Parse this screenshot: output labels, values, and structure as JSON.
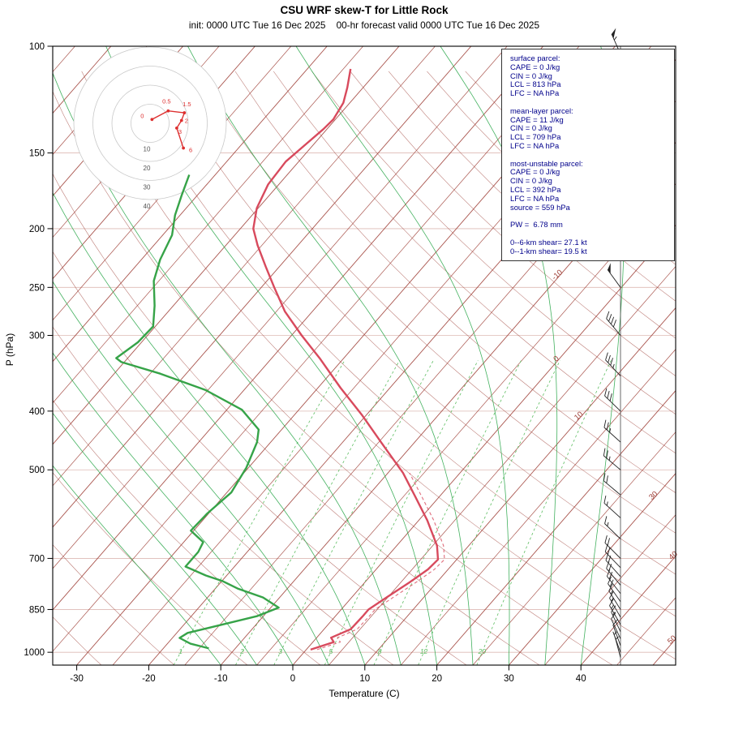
{
  "title": "CSU WRF skew-T for Little Rock",
  "subtitle": "init: 0000 UTC Tue 16 Dec 2025    00-hr forecast valid 0000 UTC Tue 16 Dec 2025",
  "axes": {
    "x_label": "Temperature (C)",
    "y_label": "P (hPa)",
    "x_ticks": [
      -30,
      -20,
      -10,
      0,
      10,
      20,
      30,
      40
    ],
    "y_ticks": [
      100,
      150,
      200,
      250,
      300,
      400,
      500,
      700,
      850,
      1000
    ]
  },
  "isotherm_labels": [
    {
      "t": -10,
      "label": "-10"
    },
    {
      "t": 0,
      "label": "0"
    },
    {
      "t": 10,
      "label": "10"
    },
    {
      "t": 30,
      "label": "30"
    },
    {
      "t": 40,
      "label": "40"
    },
    {
      "t": 50,
      "label": "50"
    }
  ],
  "mixing_ratio_labels": [
    1,
    2,
    3,
    5,
    8,
    12,
    20
  ],
  "info_box": {
    "sections": [
      {
        "title": "surface parcel:",
        "rows": [
          "CAPE = 0 J/kg",
          "CIN = 0 J/kg",
          "LCL = 813 hPa",
          "LFC = NA hPa"
        ]
      },
      {
        "title": "mean-layer parcel:",
        "rows": [
          "CAPE = 11 J/kg",
          "CIN = 0 J/kg",
          "LCL = 709 hPa",
          "LFC = NA hPa"
        ]
      },
      {
        "title": "most-unstable parcel:",
        "rows": [
          "CAPE = 0 J/kg",
          "CIN = 0 J/kg",
          "LCL = 392 hPa",
          "LFC = NA hPa",
          "source = 559 hPa"
        ]
      },
      {
        "title": "",
        "rows": [
          "PW =  6.78 mm"
        ]
      },
      {
        "title": "",
        "rows": [
          "0--6-km shear= 27.1 kt",
          "0--1-km shear= 19.5 kt"
        ]
      }
    ]
  },
  "colors": {
    "isotherm": "#a0423a",
    "pressure_grid": "#debab4",
    "moist_adiabat": "#2fa84e",
    "mixing_ratio": "#5fbe63",
    "temperature": "#d84a5d",
    "dewpoint": "#36a348",
    "hodograph_trace": "#dd2f2f",
    "hodograph_ring": "#c9c9c9",
    "info_text": "#00008b",
    "barb": "#222222",
    "frame": "#000000"
  },
  "chart_data": {
    "type": "skewt-log-p",
    "pressure_axis_hpa": [
      100,
      1050
    ],
    "temperature_axis_c": [
      -35,
      52
    ],
    "temperature_profile": [
      [
        990,
        0.6
      ],
      [
        962,
        2.9
      ],
      [
        946,
        2.0
      ],
      [
        916,
        3.7
      ],
      [
        873,
        3.8
      ],
      [
        850,
        3.8
      ],
      [
        810,
        4.9
      ],
      [
        767,
        6.2
      ],
      [
        730,
        7.2
      ],
      [
        703,
        7.4
      ],
      [
        667,
        5.6
      ],
      [
        606,
        1.2
      ],
      [
        553,
        -3.4
      ],
      [
        506,
        -7.9
      ],
      [
        450,
        -14.7
      ],
      [
        406,
        -20.6
      ],
      [
        366,
        -26.9
      ],
      [
        328,
        -33.2
      ],
      [
        300,
        -38.6
      ],
      [
        274,
        -43.8
      ],
      [
        250,
        -48.2
      ],
      [
        231,
        -51.9
      ],
      [
        213,
        -55.6
      ],
      [
        200,
        -58.2
      ],
      [
        185,
        -60.2
      ],
      [
        169,
        -61.5
      ],
      [
        155,
        -61.8
      ],
      [
        145,
        -61.1
      ],
      [
        137,
        -60.5
      ],
      [
        132,
        -60.3
      ],
      [
        124,
        -60.9
      ],
      [
        117,
        -62.2
      ],
      [
        109,
        -64.0
      ]
    ],
    "dewpoint_profile": [
      [
        985,
        -13.7
      ],
      [
        968,
        -16.8
      ],
      [
        947,
        -19.0
      ],
      [
        929,
        -18.5
      ],
      [
        901,
        -14.8
      ],
      [
        872,
        -10.9
      ],
      [
        844,
        -8.9
      ],
      [
        812,
        -12.3
      ],
      [
        785,
        -16.9
      ],
      [
        763,
        -19.9
      ],
      [
        747,
        -22.9
      ],
      [
        722,
        -26.8
      ],
      [
        683,
        -26.8
      ],
      [
        658,
        -27.3
      ],
      [
        630,
        -30.4
      ],
      [
        590,
        -30.2
      ],
      [
        545,
        -29.4
      ],
      [
        496,
        -30.3
      ],
      [
        450,
        -31.9
      ],
      [
        429,
        -33.2
      ],
      [
        398,
        -37.9
      ],
      [
        369,
        -45.4
      ],
      [
        347,
        -53.6
      ],
      [
        332,
        -60.4
      ],
      [
        327,
        -61.6
      ],
      [
        308,
        -60.5
      ],
      [
        290,
        -60.3
      ],
      [
        268,
        -62.6
      ],
      [
        244,
        -65.7
      ],
      [
        225,
        -67.4
      ],
      [
        205,
        -68.7
      ],
      [
        190,
        -70.7
      ],
      [
        176,
        -72.2
      ],
      [
        163,
        -73.6
      ]
    ],
    "wind_barbs": [
      [
        1020,
        5,
        345
      ],
      [
        1000,
        5,
        340
      ],
      [
        975,
        10,
        340
      ],
      [
        950,
        10,
        335
      ],
      [
        925,
        15,
        335
      ],
      [
        900,
        15,
        330
      ],
      [
        875,
        15,
        330
      ],
      [
        850,
        15,
        328
      ],
      [
        825,
        20,
        325
      ],
      [
        800,
        20,
        322
      ],
      [
        775,
        20,
        320
      ],
      [
        750,
        20,
        318
      ],
      [
        725,
        20,
        316
      ],
      [
        700,
        20,
        315
      ],
      [
        650,
        15,
        314
      ],
      [
        600,
        15,
        312
      ],
      [
        550,
        20,
        310
      ],
      [
        500,
        25,
        310
      ],
      [
        450,
        25,
        312
      ],
      [
        400,
        30,
        314
      ],
      [
        350,
        35,
        317
      ],
      [
        300,
        40,
        320
      ],
      [
        250,
        50,
        324
      ],
      [
        225,
        55,
        326
      ],
      [
        200,
        60,
        328
      ],
      [
        175,
        60,
        330
      ],
      [
        150,
        65,
        332
      ],
      [
        125,
        60,
        334
      ],
      [
        103,
        55,
        336
      ]
    ],
    "hodograph": {
      "rings_kt": [
        10,
        20,
        30,
        40
      ],
      "points_kt": [
        {
          "label": "0",
          "u": 1,
          "v": 2
        },
        {
          "label": "0.5",
          "u": 9.5,
          "v": 6.5
        },
        {
          "label": "1.5",
          "u": 18,
          "v": 5.5
        },
        {
          "label": "2",
          "u": 16.5,
          "v": 1.5
        },
        {
          "label": "3",
          "u": 14,
          "v": -2.5
        },
        {
          "label": "6",
          "u": 17.5,
          "v": -13
        }
      ]
    }
  }
}
